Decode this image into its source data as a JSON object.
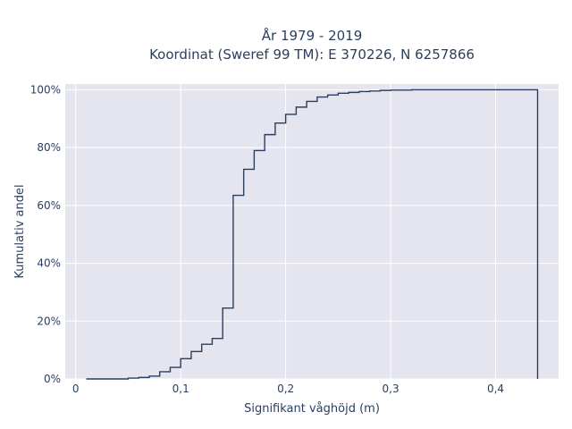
{
  "chart_data": {
    "type": "line",
    "title_line1": "År 1979 - 2019",
    "title_line2": "Koordinat (Sweref 99 TM): E 370226, N 6257866",
    "xlabel": "Signifikant våghöjd (m)",
    "ylabel": "Kumulativ andel",
    "xlim": [
      -0.01,
      0.46
    ],
    "ylim": [
      0,
      1.02
    ],
    "xticks": [
      0,
      0.1,
      0.2,
      0.3,
      0.4
    ],
    "xtick_labels": [
      "0",
      "0,1",
      "0,2",
      "0,3",
      "0,4"
    ],
    "yticks": [
      0,
      0.2,
      0.4,
      0.6,
      0.8,
      1.0
    ],
    "ytick_labels": [
      "0%",
      "20%",
      "40%",
      "60%",
      "80%",
      "100%"
    ],
    "grid": true,
    "series": [
      {
        "line_style": "step",
        "color": "#2a3f5f",
        "x": [
          0.01,
          0.05,
          0.06,
          0.07,
          0.08,
          0.09,
          0.1,
          0.11,
          0.12,
          0.13,
          0.14,
          0.15,
          0.16,
          0.17,
          0.18,
          0.19,
          0.2,
          0.21,
          0.22,
          0.23,
          0.24,
          0.25,
          0.26,
          0.27,
          0.28,
          0.29,
          0.3,
          0.32,
          0.35,
          0.44
        ],
        "y": [
          0.0,
          0.003,
          0.005,
          0.01,
          0.025,
          0.04,
          0.07,
          0.095,
          0.12,
          0.14,
          0.245,
          0.635,
          0.725,
          0.79,
          0.845,
          0.885,
          0.915,
          0.94,
          0.96,
          0.975,
          0.982,
          0.988,
          0.991,
          0.994,
          0.996,
          0.998,
          0.999,
          1.0,
          1.0,
          1.0
        ],
        "end_drop_to": 0
      }
    ]
  },
  "colors": {
    "plot_bg": "#e5e5f0",
    "grid": "#ffffff",
    "text": "#2a3f5f",
    "line": "#2a3f5f"
  }
}
